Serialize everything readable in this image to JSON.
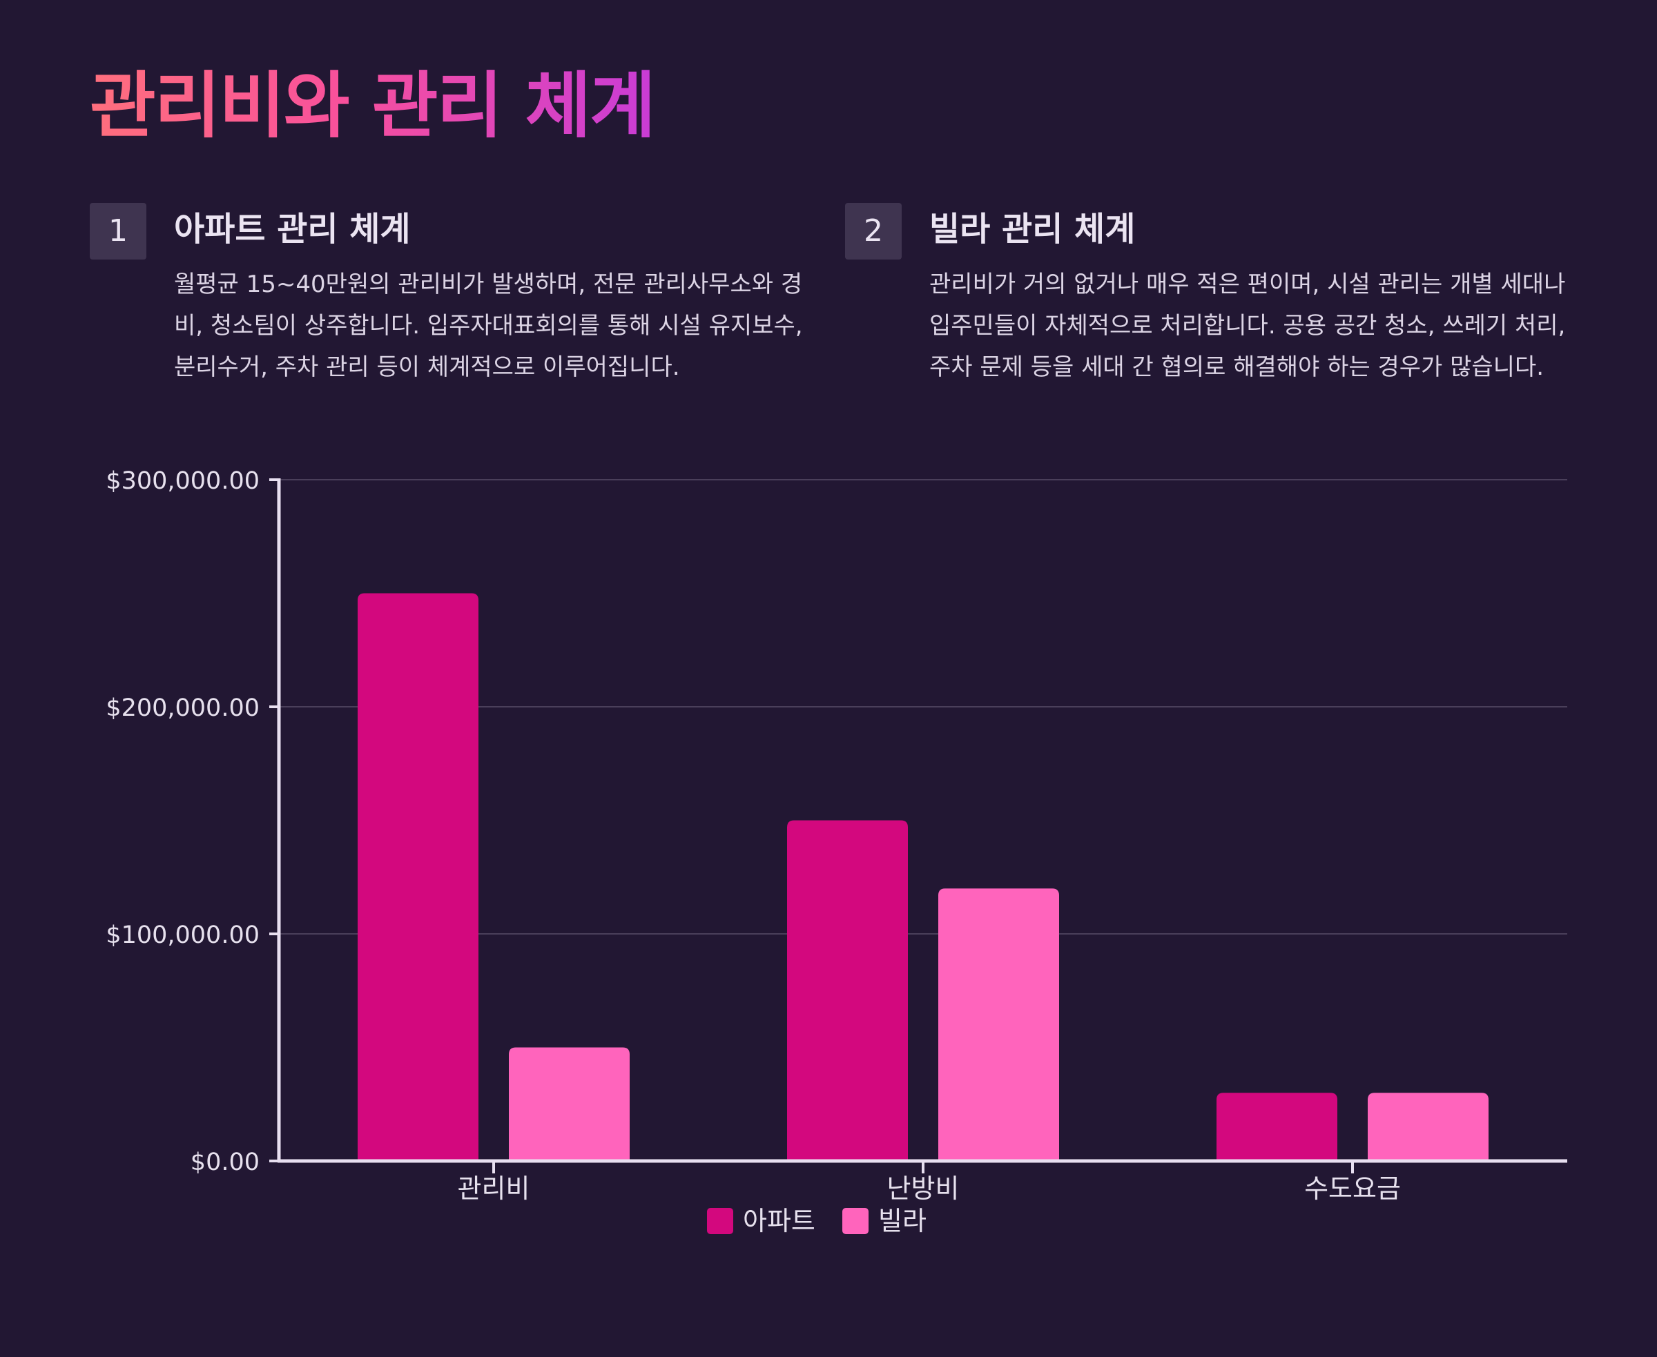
{
  "title": "관리비와 관리 체계",
  "sections": [
    {
      "number": "1",
      "title": "아파트 관리 체계",
      "body": "월평균 15~40만원의 관리비가 발생하며, 전문 관리사무소와 경비, 청소팀이 상주합니다. 입주자대표회의를 통해 시설 유지보수, 분리수거, 주차 관리 등이 체계적으로 이루어집니다."
    },
    {
      "number": "2",
      "title": "빌라 관리 체계",
      "body": "관리비가 거의 없거나 매우 적은 편이며, 시설 관리는 개별 세대나 입주민들이 자체적으로 처리합니다. 공용 공간 청소, 쓰레기 처리, 주차 문제 등을 세대 간 협의로 해결해야 하는 경우가 많습니다."
    }
  ],
  "colors": {
    "background": "#221733",
    "series_apartment": "#d3087e",
    "series_villa": "#ff64bc",
    "axis": "#e8dff0",
    "grid": "#4a3f5a"
  },
  "chart_data": {
    "type": "bar",
    "categories": [
      "관리비",
      "난방비",
      "수도요금"
    ],
    "series": [
      {
        "name": "아파트",
        "values": [
          250000,
          150000,
          30000
        ]
      },
      {
        "name": "빌라",
        "values": [
          50000,
          120000,
          30000
        ]
      }
    ],
    "yticks": [
      0,
      100000,
      200000,
      300000
    ],
    "ytick_labels": [
      "$0.00",
      "$100,000.00",
      "$200,000.00",
      "$300,000.00"
    ],
    "ylim": [
      0,
      300000
    ],
    "grid": true,
    "legend_position": "bottom"
  }
}
